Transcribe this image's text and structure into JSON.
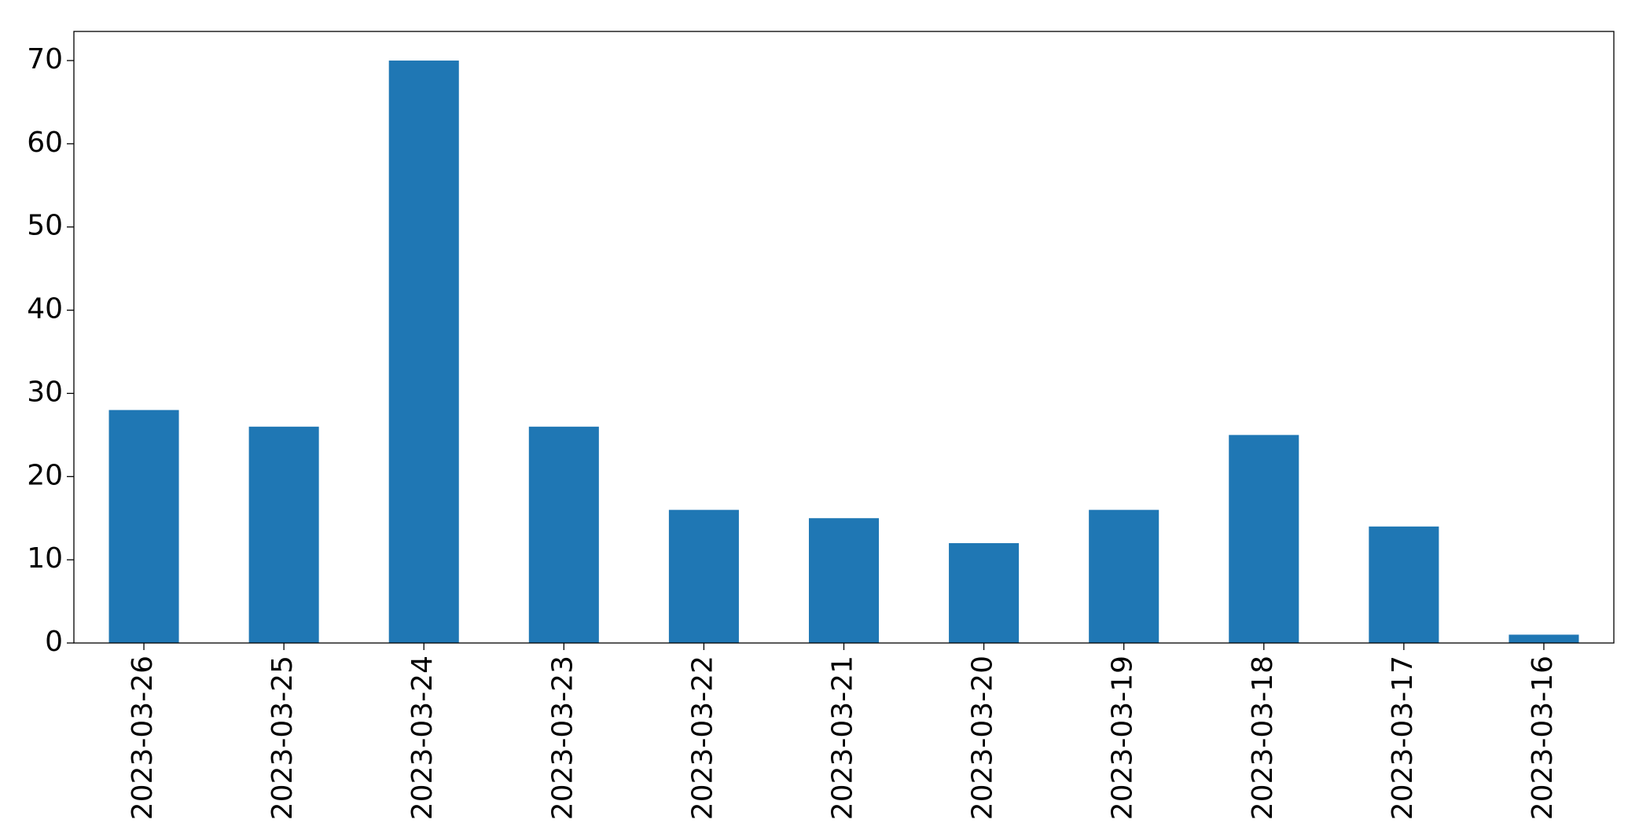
{
  "chart_data": {
    "type": "bar",
    "categories": [
      "2023-03-26",
      "2023-03-25",
      "2023-03-24",
      "2023-03-23",
      "2023-03-22",
      "2023-03-21",
      "2023-03-20",
      "2023-03-19",
      "2023-03-18",
      "2023-03-17",
      "2023-03-16"
    ],
    "values": [
      28,
      26,
      70,
      26,
      16,
      15,
      12,
      16,
      25,
      14,
      1
    ],
    "color": "#1f77b4",
    "ylim": [
      0,
      73.5
    ],
    "yticks": [
      0,
      10,
      20,
      30,
      40,
      50,
      60,
      70
    ],
    "grid": false
  }
}
